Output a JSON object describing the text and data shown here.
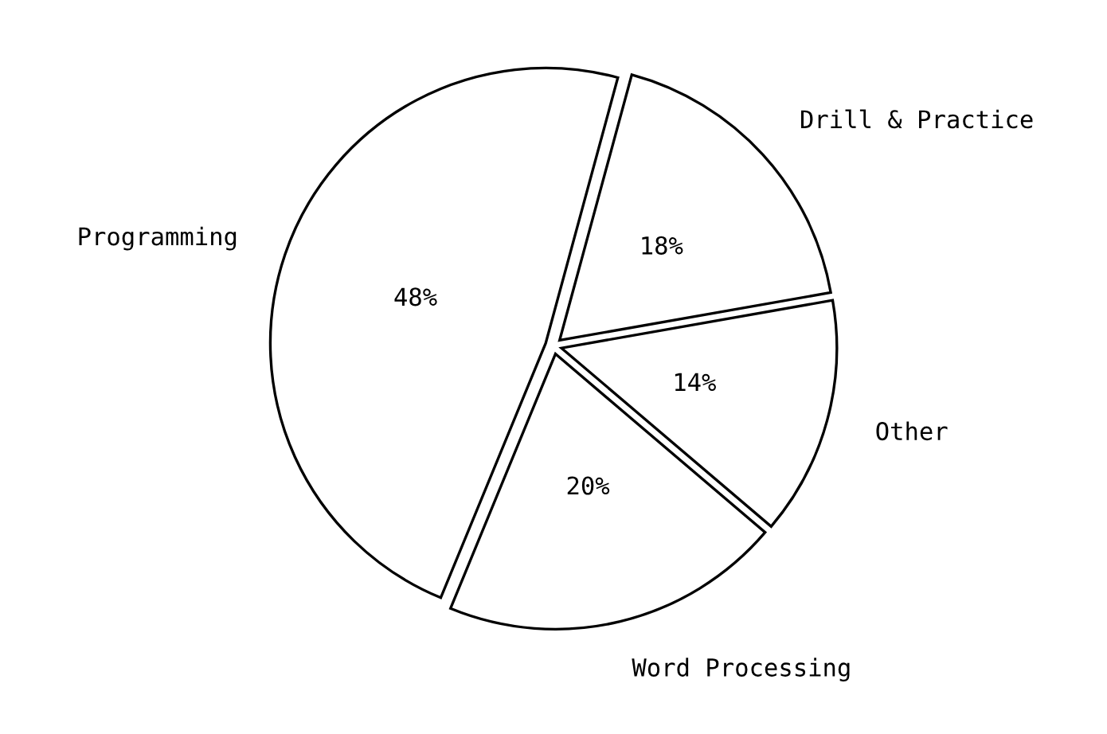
{
  "chart_data": {
    "type": "pie",
    "categories": [
      "Drill & Practice",
      "Programming",
      "Word Processing",
      "Other"
    ],
    "values": [
      18,
      48,
      20,
      14
    ],
    "value_labels": [
      "18%",
      "48%",
      "20%",
      "14%"
    ],
    "colors": [
      "#ffffff",
      "#ffffff",
      "#ffffff",
      "#ffffff"
    ],
    "legend": false
  }
}
